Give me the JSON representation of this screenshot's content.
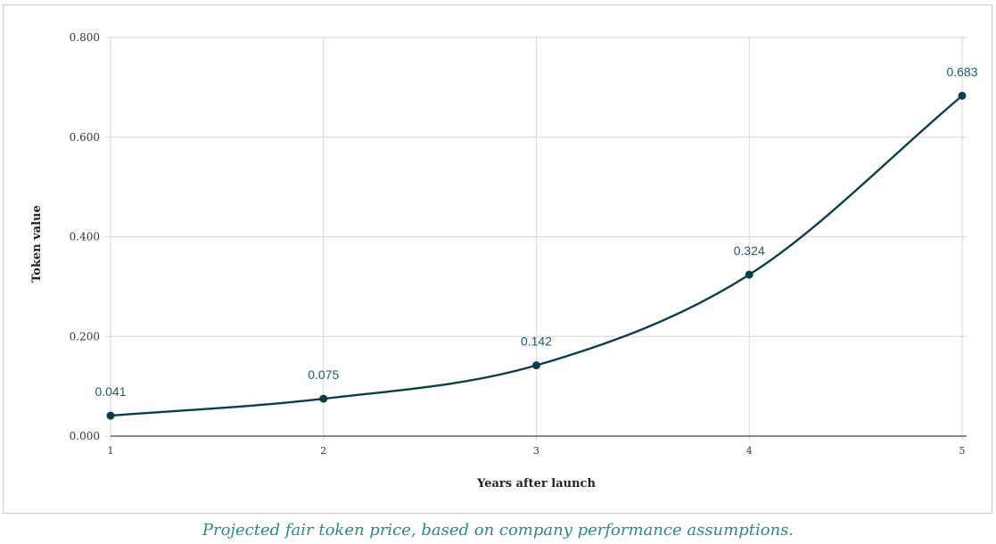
{
  "chart_data": {
    "type": "line",
    "title": "",
    "xlabel": "Years after launch",
    "ylabel": "Token value",
    "x": [
      1,
      2,
      3,
      4,
      5
    ],
    "x_tick_labels": [
      "1",
      "2",
      "3",
      "4",
      "5"
    ],
    "series": [
      {
        "values": [
          0.041,
          0.075,
          0.142,
          0.324,
          0.683
        ],
        "data_labels": [
          "0.041",
          "0.075",
          "0.142",
          "0.324",
          "0.683"
        ]
      }
    ],
    "ylim": [
      0,
      0.8
    ],
    "y_ticks": [
      0,
      0.2,
      0.4,
      0.6,
      0.8
    ],
    "y_tick_labels": [
      "0.000",
      "0.200",
      "0.400",
      "0.600",
      "0.800"
    ],
    "grid": true,
    "smooth": true,
    "line_color": "#0b3d4a",
    "label_color": "#1f5a66"
  },
  "caption": "Projected fair token price, based on company performance assumptions."
}
